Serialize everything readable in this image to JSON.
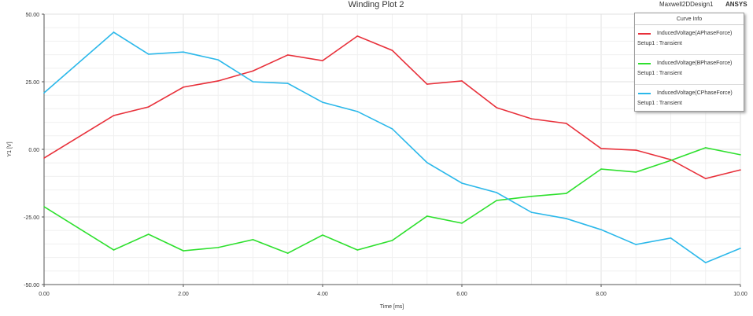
{
  "header": {
    "title": "Winding Plot 2",
    "design": "Maxwell2DDesign1",
    "brand": "ANSYS"
  },
  "chart_data": {
    "type": "line",
    "title": "Winding Plot 2",
    "xlabel": "Time [ms]",
    "ylabel": "Y1 [V]",
    "xlim": [
      0,
      10
    ],
    "ylim": [
      -50,
      50
    ],
    "xticks": [
      "0.00",
      "2.00",
      "4.00",
      "6.00",
      "8.00",
      "10.00"
    ],
    "yticks": [
      "50.00",
      "25.00",
      "0.00",
      "-25.00",
      "-50.00"
    ],
    "grid": true,
    "legend_position": "top-right",
    "legend_title": "Curve Info",
    "x": [
      0,
      1,
      1.5,
      2,
      2.5,
      3,
      3.5,
      4,
      4.5,
      5,
      5.5,
      6,
      6.5,
      7,
      7.5,
      8,
      8.5,
      9,
      9.5,
      10
    ],
    "series": [
      {
        "name": "InducedVoltage(APhaseForce)",
        "setup": "Setup1 : Transient",
        "color": "#e8303a",
        "values": [
          -3.2,
          12.5,
          15.7,
          23,
          25.3,
          29,
          34.9,
          32.8,
          41.9,
          36.6,
          24.1,
          25.3,
          15.4,
          11.3,
          9.6,
          0.3,
          -0.3,
          -3.8,
          -10.8,
          -7.6
        ]
      },
      {
        "name": "InducedVoltage(BPhaseForce)",
        "setup": "Setup1 : Transient",
        "color": "#2ee02e",
        "values": [
          -21.2,
          -37.2,
          -31.4,
          -37.5,
          -36.3,
          -33.4,
          -38.4,
          -31.7,
          -37.2,
          -33.7,
          -24.7,
          -27.3,
          -18.9,
          -17.4,
          -16.3,
          -7.3,
          -8.4,
          -4.1,
          0.6,
          -2
        ]
      },
      {
        "name": "InducedVoltage(CPhaseForce)",
        "setup": "Setup1 : Transient",
        "color": "#2bb8ea",
        "values": [
          20.9,
          43.3,
          35.2,
          36,
          33.1,
          25,
          24.4,
          17.4,
          14,
          7.6,
          -4.9,
          -12.5,
          -16,
          -23.3,
          -25.6,
          -29.7,
          -35.2,
          -32.8,
          -41.9,
          -36.6
        ]
      }
    ]
  }
}
